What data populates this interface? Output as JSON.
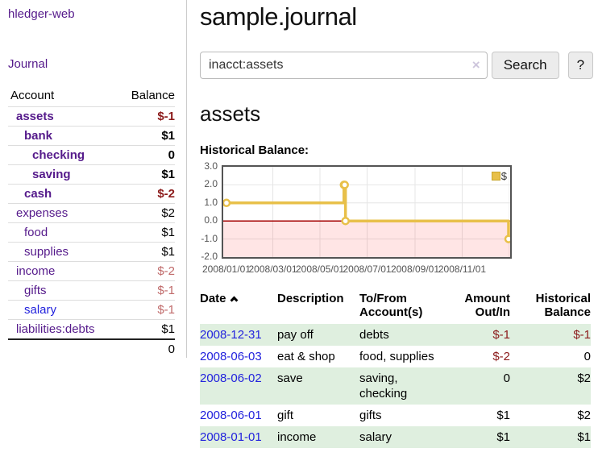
{
  "brand": "hledger-web",
  "sidebar": {
    "journal_link": "Journal",
    "accounts": {
      "headers": {
        "account": "Account",
        "balance": "Balance"
      },
      "rows": [
        {
          "name": "assets",
          "balance": "$-1"
        },
        {
          "name": "bank",
          "balance": "$1"
        },
        {
          "name": "checking",
          "balance": "0"
        },
        {
          "name": "saving",
          "balance": "$1"
        },
        {
          "name": "cash",
          "balance": "$-2"
        },
        {
          "name": "expenses",
          "balance": "$2"
        },
        {
          "name": "food",
          "balance": "$1"
        },
        {
          "name": "supplies",
          "balance": "$1"
        },
        {
          "name": "income",
          "balance": "$-2"
        },
        {
          "name": "gifts",
          "balance": "$-1"
        },
        {
          "name": "salary",
          "balance": "$-1"
        },
        {
          "name": "liabilities:debts",
          "balance": "$1"
        }
      ],
      "total": "0"
    }
  },
  "main": {
    "title": "sample.journal",
    "search": {
      "value": "inacct:assets",
      "clear_icon": "×",
      "search_button": "Search",
      "help_button": "?"
    },
    "account_heading": "assets",
    "section_label": "Historical Balance:"
  },
  "chart_data": {
    "type": "line",
    "title": "Historical Balance:",
    "steps": true,
    "series": [
      {
        "name": "$",
        "color": "#e8c04a",
        "points": [
          {
            "date": "2008-01-01",
            "day": 0,
            "value": 1
          },
          {
            "date": "2008-06-01",
            "day": 152,
            "value": 2
          },
          {
            "date": "2008-06-02",
            "day": 153,
            "value": 2
          },
          {
            "date": "2008-06-03",
            "day": 154,
            "value": 0
          },
          {
            "date": "2008-12-31",
            "day": 365,
            "value": -1
          }
        ]
      }
    ],
    "x_ticks": [
      {
        "label": "2008/01/01",
        "day": 0
      },
      {
        "label": "2008/03/01",
        "day": 60
      },
      {
        "label": "2008/05/01",
        "day": 121
      },
      {
        "label": "2008/07/01",
        "day": 182
      },
      {
        "label": "2008/09/01",
        "day": 244
      },
      {
        "label": "2008/11/01",
        "day": 305
      }
    ],
    "extra_gridline_day": 366,
    "y_ticks": [
      "3.0",
      "2.0",
      "1.0",
      "0.0",
      "-1.0",
      "-2.0"
    ],
    "ylim": [
      -2,
      3
    ],
    "x_range_days": [
      0,
      365
    ],
    "legend": {
      "label": "$",
      "position": "top-right"
    },
    "zero_line_color": "#a40000",
    "negative_fill": "rgba(255,0,0,0.10)",
    "gridline_color": "#e6e6e6"
  },
  "register": {
    "headers": [
      "Date",
      "Description",
      "To/From Account(s)",
      "Amount Out/In",
      "Historical Balance"
    ],
    "rows": [
      {
        "date": "2008-12-31",
        "description": "pay off",
        "accounts": "debts",
        "amount": "$-1",
        "balance": "$-1"
      },
      {
        "date": "2008-06-03",
        "description": "eat & shop",
        "accounts": "food, supplies",
        "amount": "$-2",
        "balance": "0"
      },
      {
        "date": "2008-06-02",
        "description": "save",
        "accounts": "saving,\nchecking",
        "amount": "0",
        "balance": "$2"
      },
      {
        "date": "2008-06-01",
        "description": "gift",
        "accounts": "gifts",
        "amount": "$1",
        "balance": "$2"
      },
      {
        "date": "2008-01-01",
        "description": "income",
        "accounts": "salary",
        "amount": "$1",
        "balance": "$1"
      }
    ]
  },
  "colors": {
    "accent_purple": "#551a8b",
    "link_blue": "#2222dd",
    "negative_strong": "#8b1a1a",
    "negative_soft": "#c06a6a",
    "row_green": "#dfefdf",
    "chart_line": "#e8c04a"
  }
}
